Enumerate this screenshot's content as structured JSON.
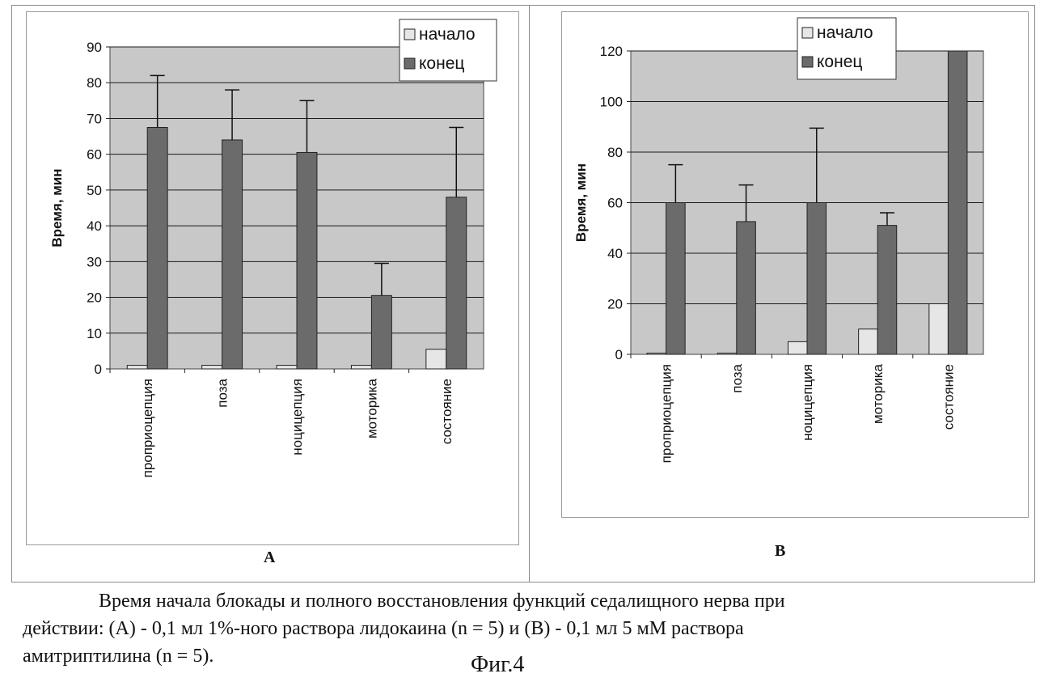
{
  "chart_data": [
    {
      "id": "A",
      "type": "bar",
      "panel_label": "A",
      "ylabel": "Время, мин",
      "ylim": [
        0,
        90
      ],
      "yticks": [
        0,
        10,
        20,
        30,
        40,
        50,
        60,
        70,
        80,
        90
      ],
      "categories": [
        "проприоцепция",
        "поза",
        "ноцицепция",
        "моторика",
        "состояние"
      ],
      "series": [
        {
          "name": "начало",
          "values": [
            1,
            1,
            1,
            1,
            5.5
          ],
          "color": "#e6e6e6"
        },
        {
          "name": "конец",
          "values": [
            67.5,
            64,
            60.5,
            20.5,
            48
          ],
          "error_upper": [
            82,
            78,
            75,
            29.5,
            67.5
          ],
          "color": "#6b6b6b"
        }
      ],
      "grid": true,
      "plot_background": "#c8c8c8",
      "legend_position": "top-right"
    },
    {
      "id": "B",
      "type": "bar",
      "panel_label": "B",
      "ylabel": "Время, мин",
      "ylim": [
        0,
        120
      ],
      "yticks": [
        0,
        20,
        40,
        60,
        80,
        100,
        120
      ],
      "categories": [
        "проприоцепция",
        "поза",
        "ноцицепция",
        "моторика",
        "состояние"
      ],
      "series": [
        {
          "name": "начало",
          "values": [
            0.5,
            0.5,
            5,
            10,
            20
          ],
          "color": "#e6e6e6"
        },
        {
          "name": "конец",
          "values": [
            60,
            52.5,
            60,
            51,
            120
          ],
          "error_upper": [
            75,
            67,
            89.5,
            56,
            null
          ],
          "color": "#6b6b6b"
        }
      ],
      "grid": true,
      "plot_background": "#c8c8c8",
      "legend_position": "top-right"
    }
  ],
  "caption": {
    "line1": "Время начала блокады и полного восстановления функций седалищного нерва при",
    "line2": "действии: (А) -  0,1 мл 1%-ного раствора лидокаина (n = 5) и (В) - 0,1 мл 5 мМ раствора",
    "line3": "амитриптилина (n = 5).",
    "fig_label": "Фиг.4"
  }
}
